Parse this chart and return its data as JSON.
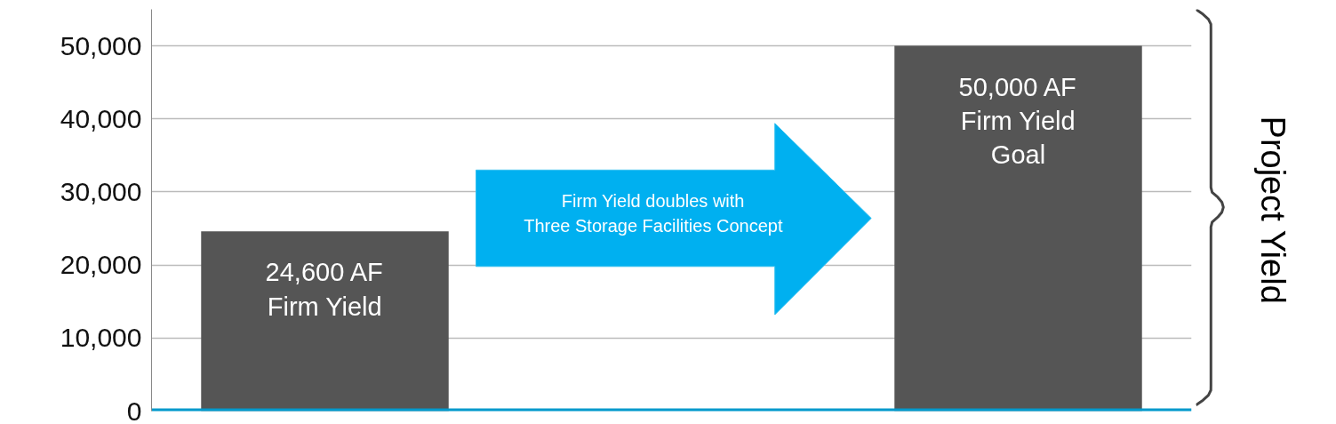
{
  "chart_data": {
    "type": "bar",
    "categories": [
      null,
      null
    ],
    "values": [
      24600,
      50000
    ],
    "colors": [
      "#555555",
      "#555555"
    ],
    "value_labels": [
      "24,600 AF\nFirm Yield",
      "50,000 AF\nFirm Yield\nGoal"
    ],
    "ylim": [
      0,
      55000
    ],
    "yticks": [
      0,
      {
        "value": 10000,
        "label": "10,000"
      },
      {
        "value": 20000,
        "label": "20,000"
      },
      {
        "value": 30000,
        "label": "30,000"
      },
      {
        "value": 40000,
        "label": "40,000"
      },
      {
        "value": 50000,
        "label": "50,000"
      }
    ],
    "grid": "y",
    "annotations": [
      "Firm Yield doubles with\nThree Storage Facilities Concept",
      "Project Yield"
    ]
  }
}
